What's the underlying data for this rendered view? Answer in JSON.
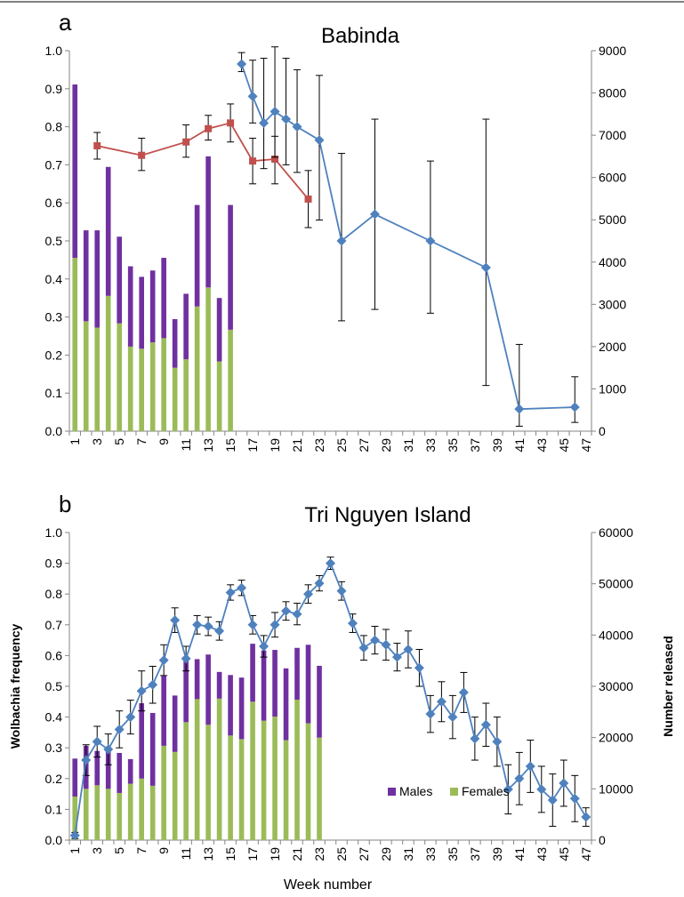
{
  "figure": {
    "x_axis_label": "Week number",
    "colors": {
      "males": "#7030a0",
      "females": "#9bbb59",
      "blue": "#4f81bd",
      "red": "#c0504d",
      "error": "#000000"
    }
  },
  "chart_data": [
    {
      "panel": "a",
      "title": "Babinda",
      "type": "bar+line",
      "xlabel": "",
      "ylabel_left": "",
      "ylabel_right": "",
      "x_range": [
        1,
        47
      ],
      "x_ticks": [
        "1",
        "3",
        "5",
        "7",
        "9",
        "11",
        "13",
        "15",
        "17",
        "19",
        "21",
        "23",
        "25",
        "27",
        "29",
        "31",
        "33",
        "35",
        "37",
        "39",
        "41",
        "43",
        "45",
        "47"
      ],
      "ylim_left": [
        0,
        1.0
      ],
      "y_ticks_left": [
        "0.0",
        "0.1",
        "0.2",
        "0.3",
        "0.4",
        "0.5",
        "0.6",
        "0.7",
        "0.8",
        "0.9",
        "1.0"
      ],
      "ylim_right": [
        0,
        9000
      ],
      "y_ticks_right": [
        "0",
        "1000",
        "2000",
        "3000",
        "4000",
        "5000",
        "6000",
        "7000",
        "8000",
        "9000"
      ],
      "grid": false,
      "bars": {
        "axis": "right",
        "stacked": true,
        "weeks": [
          1,
          2,
          3,
          4,
          5,
          6,
          7,
          8,
          9,
          10,
          11,
          12,
          13,
          14,
          15
        ],
        "females": [
          4100,
          2600,
          2450,
          3200,
          2550,
          2000,
          1950,
          2100,
          2200,
          1500,
          1700,
          2950,
          3400,
          1650,
          2400
        ],
        "males": [
          4100,
          2150,
          2300,
          3050,
          2050,
          1900,
          1700,
          1700,
          1900,
          1150,
          1550,
          2400,
          3100,
          1500,
          2950
        ]
      },
      "series": [
        {
          "color": "red",
          "marker": "square",
          "axis": "left",
          "x": [
            3,
            7,
            11,
            13,
            15,
            17,
            19,
            22
          ],
          "y": [
            0.75,
            0.725,
            0.76,
            0.795,
            0.81,
            0.71,
            0.715,
            0.61
          ],
          "err_lo": [
            0.035,
            0.04,
            0.04,
            0.03,
            0.05,
            0.06,
            0.065,
            0.075
          ],
          "err_hi": [
            0.035,
            0.045,
            0.045,
            0.035,
            0.05,
            0.06,
            0.06,
            0.075
          ]
        },
        {
          "color": "blue",
          "marker": "diamond",
          "axis": "left",
          "x": [
            16,
            17,
            18,
            19,
            20,
            21,
            23,
            25,
            28,
            33,
            38,
            41,
            46
          ],
          "y": [
            0.965,
            0.88,
            0.81,
            0.84,
            0.82,
            0.8,
            0.765,
            0.5,
            0.57,
            0.5,
            0.43,
            0.058,
            0.063
          ],
          "err_lo": [
            0.02,
            0.07,
            0.12,
            0.12,
            0.12,
            0.12,
            0.21,
            0.21,
            0.25,
            0.19,
            0.31,
            0.045,
            0.04
          ],
          "err_hi": [
            0.03,
            0.095,
            0.17,
            0.17,
            0.16,
            0.15,
            0.17,
            0.23,
            0.25,
            0.21,
            0.39,
            0.17,
            0.08
          ]
        }
      ],
      "legend": []
    },
    {
      "panel": "b",
      "title": "Tri Nguyen Island",
      "type": "bar+line",
      "xlabel": "Week number",
      "ylabel_left": "Wolbachia frequency",
      "ylabel_right": "Number released",
      "x_range": [
        1,
        47
      ],
      "x_ticks": [
        "1",
        "3",
        "5",
        "7",
        "9",
        "11",
        "13",
        "15",
        "17",
        "19",
        "21",
        "23",
        "25",
        "27",
        "29",
        "31",
        "33",
        "35",
        "37",
        "39",
        "41",
        "43",
        "45",
        "47"
      ],
      "ylim_left": [
        0,
        1.0
      ],
      "y_ticks_left": [
        "0.0",
        "0.1",
        "0.2",
        "0.3",
        "0.4",
        "0.5",
        "0.6",
        "0.7",
        "0.8",
        "0.9",
        "1.0"
      ],
      "ylim_right": [
        0,
        60000
      ],
      "y_ticks_right": [
        "0",
        "10000",
        "20000",
        "30000",
        "40000",
        "50000",
        "60000"
      ],
      "grid": false,
      "legend_position": "bottom-right",
      "legend": [
        {
          "key": "males",
          "label": "Males"
        },
        {
          "key": "females",
          "label": "Females"
        }
      ],
      "bars": {
        "axis": "right",
        "stacked": true,
        "weeks": [
          1,
          2,
          3,
          4,
          5,
          6,
          7,
          8,
          9,
          10,
          11,
          12,
          13,
          14,
          15,
          16,
          17,
          18,
          19,
          20,
          21,
          22,
          23
        ],
        "females": [
          8500,
          10000,
          10700,
          10000,
          9200,
          11000,
          12000,
          10600,
          18400,
          17200,
          23000,
          27500,
          22500,
          27600,
          20400,
          19700,
          27000,
          23300,
          24100,
          19500,
          27400,
          22800,
          20000
        ],
        "males": [
          7400,
          8400,
          6700,
          7400,
          7800,
          4800,
          14700,
          14200,
          13600,
          11000,
          12300,
          7800,
          13700,
          5200,
          11800,
          12000,
          11300,
          13700,
          13000,
          14000,
          10100,
          15300,
          14000
        ]
      },
      "series": [
        {
          "color": "blue",
          "marker": "diamond",
          "axis": "left",
          "x": [
            1,
            2,
            3,
            4,
            5,
            6,
            7,
            8,
            9,
            10,
            11,
            12,
            13,
            14,
            15,
            16,
            17,
            18,
            19,
            20,
            21,
            22,
            23,
            24,
            25,
            26,
            27,
            28,
            29,
            30,
            31,
            32,
            33,
            34,
            35,
            36,
            37,
            38,
            39,
            40,
            41,
            42,
            43,
            44,
            45,
            46,
            47
          ],
          "y": [
            0.015,
            0.26,
            0.32,
            0.295,
            0.36,
            0.4,
            0.485,
            0.505,
            0.585,
            0.715,
            0.59,
            0.7,
            0.695,
            0.68,
            0.805,
            0.82,
            0.7,
            0.63,
            0.7,
            0.745,
            0.735,
            0.8,
            0.835,
            0.9,
            0.81,
            0.705,
            0.625,
            0.65,
            0.635,
            0.595,
            0.62,
            0.56,
            0.41,
            0.45,
            0.4,
            0.48,
            0.33,
            0.375,
            0.32,
            0.165,
            0.2,
            0.24,
            0.165,
            0.13,
            0.185,
            0.135,
            0.075
          ],
          "err": [
            0.01,
            0.05,
            0.05,
            0.05,
            0.06,
            0.055,
            0.065,
            0.06,
            0.05,
            0.04,
            0.04,
            0.03,
            0.03,
            0.03,
            0.025,
            0.025,
            0.03,
            0.035,
            0.04,
            0.03,
            0.035,
            0.03,
            0.025,
            0.02,
            0.03,
            0.03,
            0.04,
            0.045,
            0.05,
            0.045,
            0.06,
            0.06,
            0.06,
            0.065,
            0.07,
            0.065,
            0.07,
            0.07,
            0.08,
            0.08,
            0.085,
            0.085,
            0.075,
            0.085,
            0.075,
            0.075,
            0.03
          ]
        }
      ]
    }
  ]
}
